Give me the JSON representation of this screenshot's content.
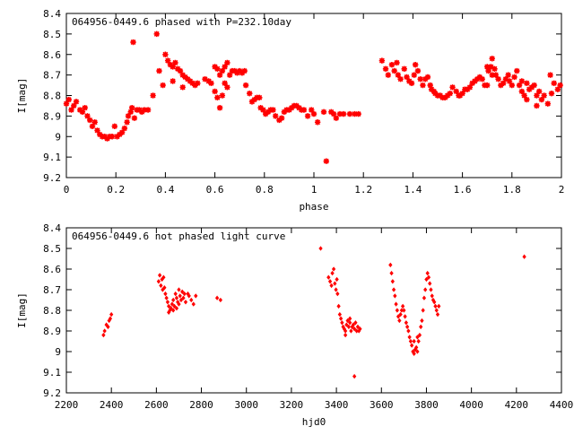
{
  "chart_data": [
    {
      "type": "scatter",
      "title": "064956-0449.6 phased with P=232.10day",
      "xlabel": "phase",
      "ylabel": "I[mag]",
      "xlim": [
        0,
        2
      ],
      "ylim": [
        8.4,
        9.2
      ],
      "y_inverted": true,
      "xticks": [
        0,
        0.2,
        0.4,
        0.6,
        0.8,
        1,
        1.2,
        1.4,
        1.6,
        1.8,
        2
      ],
      "xtick_labels": [
        "0",
        "0.2",
        "0.4",
        "0.6",
        "0.8",
        "1",
        "1.2",
        "1.4",
        "1.6",
        "1.8",
        "2"
      ],
      "yticks": [
        8.4,
        8.5,
        8.6,
        8.7,
        8.8,
        8.9,
        9.0,
        9.1,
        9.2
      ],
      "ytick_labels": [
        "8.4",
        "8.5",
        "8.6",
        "8.7",
        "8.8",
        "8.9",
        "9",
        "9.1",
        "9.2"
      ],
      "grid": false,
      "marker_color": "#ff0000",
      "points": [
        [
          0.0,
          8.84
        ],
        [
          0.01,
          8.82
        ],
        [
          0.02,
          8.87
        ],
        [
          0.03,
          8.85
        ],
        [
          0.04,
          8.83
        ],
        [
          0.055,
          8.87
        ],
        [
          0.065,
          8.88
        ],
        [
          0.075,
          8.86
        ],
        [
          0.085,
          8.9
        ],
        [
          0.095,
          8.92
        ],
        [
          0.105,
          8.95
        ],
        [
          0.115,
          8.93
        ],
        [
          0.125,
          8.97
        ],
        [
          0.135,
          8.99
        ],
        [
          0.145,
          9.0
        ],
        [
          0.155,
          9.0
        ],
        [
          0.165,
          9.01
        ],
        [
          0.175,
          9.0
        ],
        [
          0.185,
          9.0
        ],
        [
          0.195,
          8.95
        ],
        [
          0.205,
          9.0
        ],
        [
          0.215,
          8.99
        ],
        [
          0.225,
          8.98
        ],
        [
          0.235,
          8.96
        ],
        [
          0.245,
          8.93
        ],
        [
          0.25,
          8.9
        ],
        [
          0.26,
          8.88
        ],
        [
          0.265,
          8.86
        ],
        [
          0.275,
          8.91
        ],
        [
          0.285,
          8.87
        ],
        [
          0.295,
          8.87
        ],
        [
          0.305,
          8.88
        ],
        [
          0.315,
          8.87
        ],
        [
          0.33,
          8.87
        ],
        [
          0.27,
          8.54
        ],
        [
          0.35,
          8.8
        ],
        [
          0.365,
          8.5
        ],
        [
          0.375,
          8.68
        ],
        [
          0.39,
          8.75
        ],
        [
          0.4,
          8.6
        ],
        [
          0.41,
          8.63
        ],
        [
          0.42,
          8.65
        ],
        [
          0.43,
          8.66
        ],
        [
          0.44,
          8.64
        ],
        [
          0.45,
          8.67
        ],
        [
          0.46,
          8.68
        ],
        [
          0.47,
          8.7
        ],
        [
          0.48,
          8.71
        ],
        [
          0.49,
          8.72
        ],
        [
          0.5,
          8.73
        ],
        [
          0.51,
          8.74
        ],
        [
          0.52,
          8.75
        ],
        [
          0.53,
          8.74
        ],
        [
          0.43,
          8.73
        ],
        [
          0.47,
          8.76
        ],
        [
          0.56,
          8.72
        ],
        [
          0.575,
          8.73
        ],
        [
          0.585,
          8.74
        ],
        [
          0.6,
          8.66
        ],
        [
          0.61,
          8.67
        ],
        [
          0.62,
          8.7
        ],
        [
          0.63,
          8.68
        ],
        [
          0.64,
          8.66
        ],
        [
          0.65,
          8.64
        ],
        [
          0.66,
          8.7
        ],
        [
          0.67,
          8.68
        ],
        [
          0.6,
          8.78
        ],
        [
          0.61,
          8.81
        ],
        [
          0.62,
          8.86
        ],
        [
          0.63,
          8.8
        ],
        [
          0.64,
          8.74
        ],
        [
          0.65,
          8.76
        ],
        [
          0.68,
          8.68
        ],
        [
          0.69,
          8.69
        ],
        [
          0.7,
          8.68
        ],
        [
          0.71,
          8.69
        ],
        [
          0.72,
          8.68
        ],
        [
          0.725,
          8.75
        ],
        [
          0.74,
          8.79
        ],
        [
          0.75,
          8.83
        ],
        [
          0.76,
          8.82
        ],
        [
          0.77,
          8.81
        ],
        [
          0.78,
          8.81
        ],
        [
          0.785,
          8.86
        ],
        [
          0.795,
          8.87
        ],
        [
          0.805,
          8.89
        ],
        [
          0.815,
          8.88
        ],
        [
          0.825,
          8.87
        ],
        [
          0.835,
          8.87
        ],
        [
          0.845,
          8.9
        ],
        [
          0.86,
          8.92
        ],
        [
          0.87,
          8.91
        ],
        [
          0.88,
          8.88
        ],
        [
          0.89,
          8.87
        ],
        [
          0.9,
          8.87
        ],
        [
          0.91,
          8.86
        ],
        [
          0.92,
          8.85
        ],
        [
          0.93,
          8.85
        ],
        [
          0.94,
          8.86
        ],
        [
          0.95,
          8.87
        ],
        [
          0.96,
          8.87
        ],
        [
          0.975,
          8.9
        ],
        [
          0.99,
          8.87
        ],
        [
          1.0,
          8.89
        ],
        [
          1.015,
          8.93
        ],
        [
          1.04,
          8.88
        ],
        [
          1.05,
          9.12
        ],
        [
          1.07,
          8.88
        ],
        [
          1.08,
          8.89
        ],
        [
          1.09,
          8.91
        ],
        [
          1.105,
          8.89
        ],
        [
          1.12,
          8.89
        ],
        [
          1.145,
          8.89
        ],
        [
          1.165,
          8.89
        ],
        [
          1.18,
          8.89
        ],
        [
          1.275,
          8.63
        ],
        [
          1.29,
          8.67
        ],
        [
          1.3,
          8.7
        ],
        [
          1.315,
          8.65
        ],
        [
          1.325,
          8.68
        ],
        [
          1.335,
          8.64
        ],
        [
          1.34,
          8.7
        ],
        [
          1.35,
          8.72
        ],
        [
          1.365,
          8.67
        ],
        [
          1.375,
          8.71
        ],
        [
          1.385,
          8.73
        ],
        [
          1.395,
          8.74
        ],
        [
          1.405,
          8.7
        ],
        [
          1.41,
          8.65
        ],
        [
          1.42,
          8.68
        ],
        [
          1.43,
          8.72
        ],
        [
          1.44,
          8.75
        ],
        [
          1.45,
          8.72
        ],
        [
          1.46,
          8.71
        ],
        [
          1.47,
          8.75
        ],
        [
          1.475,
          8.77
        ],
        [
          1.485,
          8.78
        ],
        [
          1.49,
          8.79
        ],
        [
          1.5,
          8.8
        ],
        [
          1.51,
          8.8
        ],
        [
          1.52,
          8.81
        ],
        [
          1.53,
          8.81
        ],
        [
          1.54,
          8.8
        ],
        [
          1.55,
          8.79
        ],
        [
          1.56,
          8.76
        ],
        [
          1.575,
          8.78
        ],
        [
          1.585,
          8.8
        ],
        [
          1.59,
          8.8
        ],
        [
          1.6,
          8.79
        ],
        [
          1.61,
          8.77
        ],
        [
          1.62,
          8.77
        ],
        [
          1.63,
          8.76
        ],
        [
          1.64,
          8.74
        ],
        [
          1.65,
          8.73
        ],
        [
          1.66,
          8.72
        ],
        [
          1.67,
          8.71
        ],
        [
          1.68,
          8.72
        ],
        [
          1.69,
          8.75
        ],
        [
          1.7,
          8.75
        ],
        [
          1.705,
          8.68
        ],
        [
          1.715,
          8.66
        ],
        [
          1.72,
          8.62
        ],
        [
          1.73,
          8.67
        ],
        [
          1.735,
          8.7
        ],
        [
          1.745,
          8.72
        ],
        [
          1.755,
          8.75
        ],
        [
          1.765,
          8.74
        ],
        [
          1.775,
          8.72
        ],
        [
          1.785,
          8.7
        ],
        [
          1.79,
          8.73
        ],
        [
          1.8,
          8.75
        ],
        [
          1.81,
          8.71
        ],
        [
          1.82,
          8.68
        ],
        [
          1.83,
          8.75
        ],
        [
          1.84,
          8.78
        ],
        [
          1.85,
          8.8
        ],
        [
          1.86,
          8.82
        ],
        [
          1.87,
          8.77
        ],
        [
          1.88,
          8.76
        ],
        [
          1.89,
          8.75
        ],
        [
          1.9,
          8.8
        ],
        [
          1.91,
          8.78
        ],
        [
          1.92,
          8.82
        ],
        [
          1.93,
          8.8
        ],
        [
          1.945,
          8.84
        ],
        [
          1.96,
          8.79
        ],
        [
          1.97,
          8.74
        ],
        [
          1.985,
          8.77
        ],
        [
          1.995,
          8.75
        ],
        [
          1.7,
          8.66
        ],
        [
          1.72,
          8.7
        ],
        [
          1.9,
          8.85
        ],
        [
          1.86,
          8.74
        ],
        [
          1.84,
          8.73
        ],
        [
          1.955,
          8.7
        ]
      ]
    },
    {
      "type": "scatter",
      "title": "064956-0449.6 not phased light curve",
      "xlabel": "hjd0",
      "ylabel": "I[mag]",
      "xlim": [
        2200,
        4400
      ],
      "ylim": [
        8.4,
        9.2
      ],
      "y_inverted": true,
      "xticks": [
        2200,
        2400,
        2600,
        2800,
        3000,
        3200,
        3400,
        3600,
        3800,
        4000,
        4200,
        4400
      ],
      "xtick_labels": [
        "2200",
        "2400",
        "2600",
        "2800",
        "3000",
        "3200",
        "3400",
        "3600",
        "3800",
        "4000",
        "4200",
        "4400"
      ],
      "yticks": [
        8.4,
        8.5,
        8.6,
        8.7,
        8.8,
        8.9,
        9.0,
        9.1,
        9.2
      ],
      "ytick_labels": [
        "8.4",
        "8.5",
        "8.6",
        "8.7",
        "8.8",
        "8.9",
        "9",
        "9.1",
        "9.2"
      ],
      "grid": false,
      "marker_color": "#ff0000",
      "points": [
        [
          2365,
          8.92
        ],
        [
          2370,
          8.9
        ],
        [
          2378,
          8.87
        ],
        [
          2385,
          8.88
        ],
        [
          2390,
          8.85
        ],
        [
          2395,
          8.84
        ],
        [
          2400,
          8.82
        ],
        [
          2610,
          8.66
        ],
        [
          2615,
          8.63
        ],
        [
          2620,
          8.68
        ],
        [
          2625,
          8.65
        ],
        [
          2628,
          8.7
        ],
        [
          2632,
          8.64
        ],
        [
          2636,
          8.69
        ],
        [
          2640,
          8.72
        ],
        [
          2645,
          8.74
        ],
        [
          2650,
          8.76
        ],
        [
          2655,
          8.78
        ],
        [
          2660,
          8.8
        ],
        [
          2665,
          8.79
        ],
        [
          2670,
          8.77
        ],
        [
          2675,
          8.75
        ],
        [
          2680,
          8.78
        ],
        [
          2685,
          8.72
        ],
        [
          2690,
          8.74
        ],
        [
          2695,
          8.76
        ],
        [
          2700,
          8.7
        ],
        [
          2705,
          8.73
        ],
        [
          2710,
          8.75
        ],
        [
          2715,
          8.71
        ],
        [
          2720,
          8.74
        ],
        [
          2725,
          8.72
        ],
        [
          2730,
          8.76
        ],
        [
          2740,
          8.72
        ],
        [
          2745,
          8.73
        ],
        [
          2755,
          8.75
        ],
        [
          2765,
          8.77
        ],
        [
          2775,
          8.73
        ],
        [
          2655,
          8.81
        ],
        [
          2675,
          8.8
        ],
        [
          2700,
          8.77
        ],
        [
          2690,
          8.79
        ],
        [
          2870,
          8.74
        ],
        [
          2885,
          8.75
        ],
        [
          3330,
          8.5
        ],
        [
          3365,
          8.64
        ],
        [
          3372,
          8.66
        ],
        [
          3378,
          8.68
        ],
        [
          3382,
          8.62
        ],
        [
          3388,
          8.6
        ],
        [
          3393,
          8.67
        ],
        [
          3398,
          8.7
        ],
        [
          3402,
          8.65
        ],
        [
          3405,
          8.72
        ],
        [
          3410,
          8.78
        ],
        [
          3415,
          8.82
        ],
        [
          3420,
          8.84
        ],
        [
          3425,
          8.86
        ],
        [
          3430,
          8.88
        ],
        [
          3435,
          8.89
        ],
        [
          3440,
          8.9
        ],
        [
          3445,
          8.87
        ],
        [
          3450,
          8.85
        ],
        [
          3455,
          8.88
        ],
        [
          3460,
          8.86
        ],
        [
          3465,
          8.9
        ],
        [
          3470,
          8.88
        ],
        [
          3475,
          8.87
        ],
        [
          3480,
          8.89
        ],
        [
          3485,
          8.86
        ],
        [
          3490,
          8.9
        ],
        [
          3495,
          8.88
        ],
        [
          3500,
          8.9
        ],
        [
          3505,
          8.89
        ],
        [
          3440,
          8.92
        ],
        [
          3460,
          8.84
        ],
        [
          3480,
          9.12
        ],
        [
          3640,
          8.58
        ],
        [
          3645,
          8.62
        ],
        [
          3650,
          8.66
        ],
        [
          3655,
          8.7
        ],
        [
          3660,
          8.73
        ],
        [
          3665,
          8.77
        ],
        [
          3670,
          8.8
        ],
        [
          3675,
          8.83
        ],
        [
          3680,
          8.85
        ],
        [
          3685,
          8.82
        ],
        [
          3690,
          8.8
        ],
        [
          3695,
          8.78
        ],
        [
          3700,
          8.8
        ],
        [
          3705,
          8.83
        ],
        [
          3710,
          8.86
        ],
        [
          3715,
          8.88
        ],
        [
          3720,
          8.9
        ],
        [
          3725,
          8.93
        ],
        [
          3730,
          8.95
        ],
        [
          3735,
          8.97
        ],
        [
          3740,
          9.0
        ],
        [
          3745,
          9.01
        ],
        [
          3750,
          8.99
        ],
        [
          3755,
          8.98
        ],
        [
          3760,
          9.0
        ],
        [
          3765,
          8.95
        ],
        [
          3770,
          8.92
        ],
        [
          3775,
          8.88
        ],
        [
          3780,
          8.85
        ],
        [
          3785,
          8.8
        ],
        [
          3790,
          8.74
        ],
        [
          3795,
          8.7
        ],
        [
          3800,
          8.65
        ],
        [
          3805,
          8.62
        ],
        [
          3810,
          8.64
        ],
        [
          3815,
          8.67
        ],
        [
          3820,
          8.7
        ],
        [
          3825,
          8.73
        ],
        [
          3830,
          8.75
        ],
        [
          3835,
          8.76
        ],
        [
          3840,
          8.78
        ],
        [
          3845,
          8.8
        ],
        [
          3850,
          8.82
        ],
        [
          3855,
          8.78
        ],
        [
          3745,
          8.95
        ],
        [
          3760,
          8.93
        ],
        [
          4235,
          8.54
        ]
      ]
    }
  ]
}
